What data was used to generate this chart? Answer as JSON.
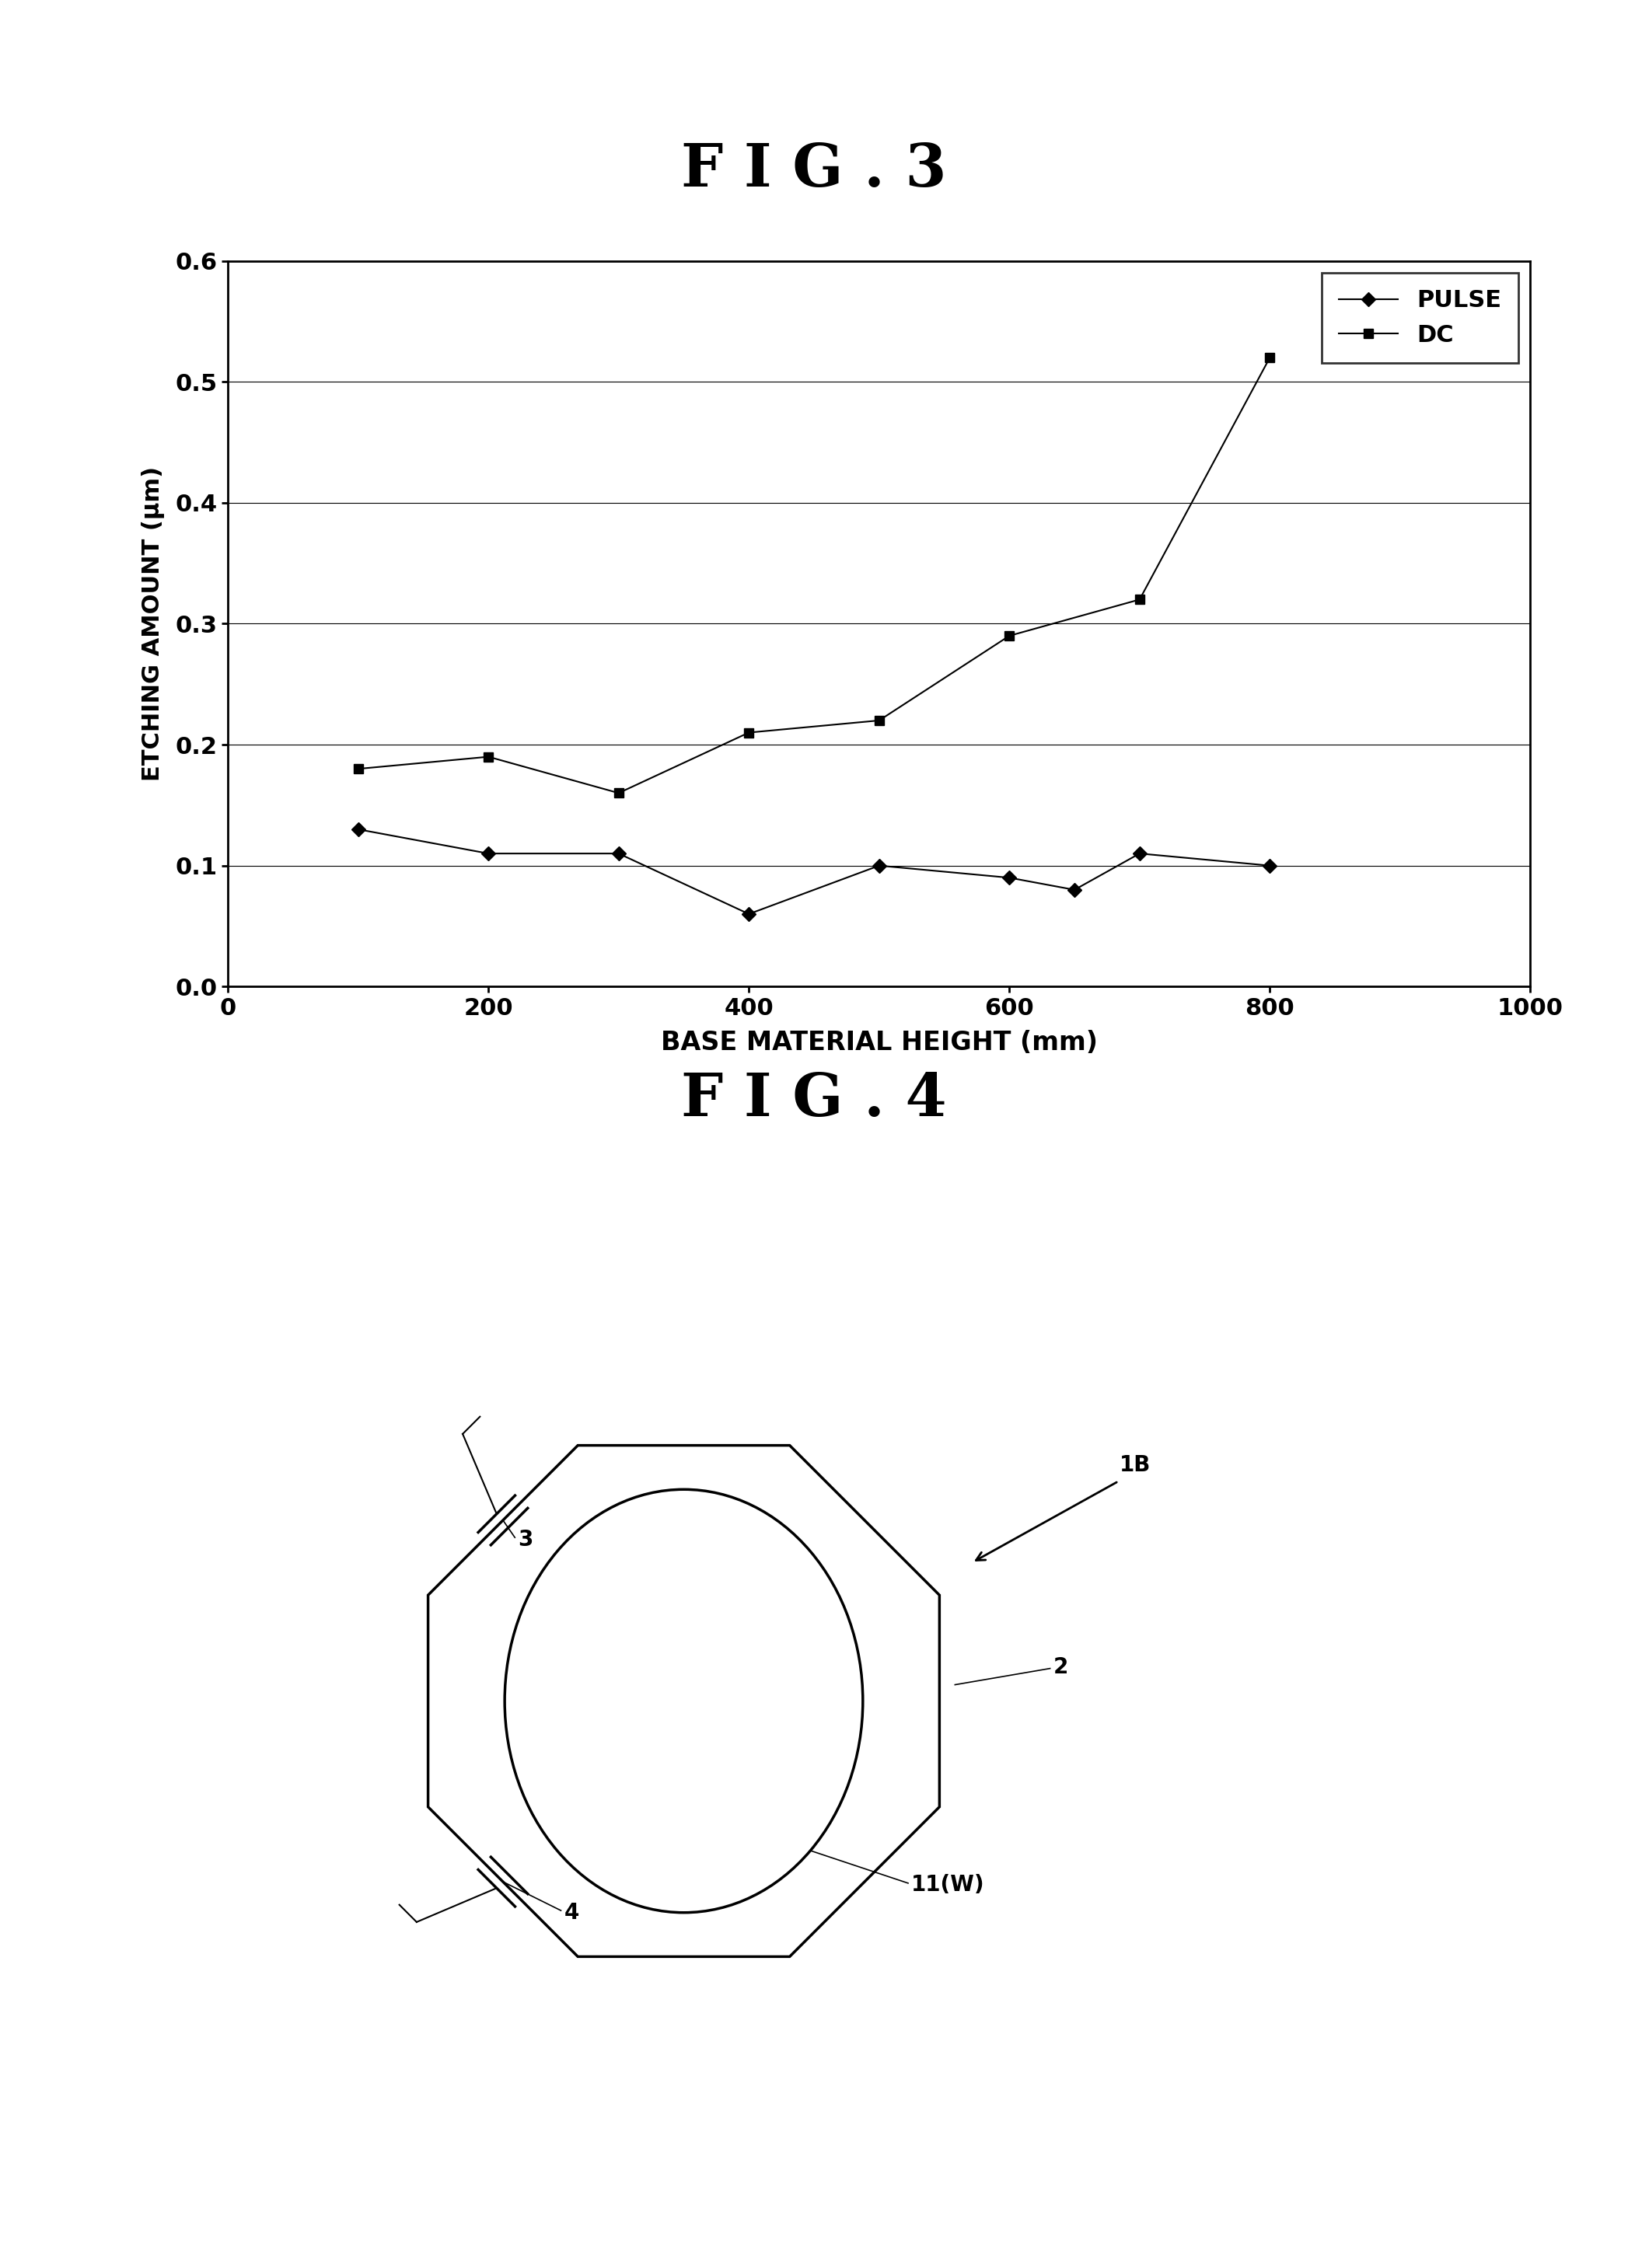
{
  "fig3_title": "F I G . 3",
  "fig4_title": "F I G . 4",
  "pulse_x": [
    100,
    200,
    300,
    400,
    500,
    600,
    650,
    700,
    800
  ],
  "pulse_y": [
    0.13,
    0.11,
    0.11,
    0.06,
    0.1,
    0.09,
    0.08,
    0.11,
    0.1
  ],
  "dc_x": [
    100,
    200,
    300,
    400,
    500,
    600,
    700,
    800
  ],
  "dc_y": [
    0.18,
    0.19,
    0.16,
    0.21,
    0.22,
    0.29,
    0.32,
    0.52
  ],
  "xlabel": "BASE MATERIAL HEIGHT (mm)",
  "ylabel": "ETCHING AMOUNT (μm)",
  "xlim": [
    0,
    1000
  ],
  "ylim": [
    0,
    0.6
  ],
  "xticks": [
    0,
    200,
    400,
    600,
    800,
    1000
  ],
  "yticks": [
    0,
    0.1,
    0.2,
    0.3,
    0.4,
    0.5,
    0.6
  ],
  "line_color": "#000000",
  "bg_color": "#ffffff",
  "legend_pulse": "PULSE",
  "legend_dc": "DC",
  "fig4_label_1B": "1B",
  "fig4_label_2": "2",
  "fig4_label_3": "3",
  "fig4_label_4": "4",
  "fig4_label_11W": "11(W)"
}
